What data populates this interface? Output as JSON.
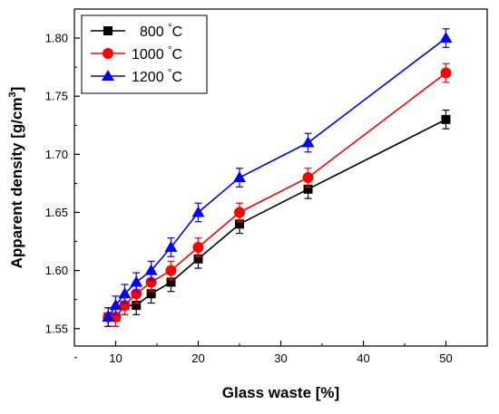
{
  "chart_data": {
    "type": "line",
    "xlabel": "Glass waste [%]",
    "ylabel": "Apparent density [g/cm³]",
    "ylabel_parts": {
      "main": "Apparent density [g/cm",
      "sup": "3",
      "end": "]"
    },
    "xlim": [
      5,
      55
    ],
    "ylim": [
      1.535,
      1.825
    ],
    "xticks": [
      10,
      20,
      30,
      40,
      50
    ],
    "yticks": [
      1.55,
      1.6,
      1.65,
      1.7,
      1.75,
      1.8
    ],
    "ytick_labels": [
      "1.55",
      "1.60",
      "1.65",
      "1.70",
      "1.75",
      "1.80"
    ],
    "legend_position": "top-left",
    "grid": false,
    "series": [
      {
        "name": "800 °C",
        "name_parts": {
          "value": "800",
          "unit": "°C"
        },
        "color": "#000000",
        "marker": "square",
        "x": [
          9.1,
          10,
          11.1,
          12.5,
          14.3,
          16.7,
          20,
          25,
          33.3,
          50
        ],
        "y": [
          1.56,
          1.56,
          1.57,
          1.57,
          1.58,
          1.59,
          1.61,
          1.64,
          1.67,
          1.73
        ],
        "error": 0.008
      },
      {
        "name": "1000 °C",
        "name_parts": {
          "value": "1000",
          "unit": "°C"
        },
        "color": "#ff0000",
        "marker": "circle",
        "x": [
          9.1,
          10,
          11.1,
          12.5,
          14.3,
          16.7,
          20,
          25,
          33.3,
          50
        ],
        "y": [
          1.56,
          1.56,
          1.57,
          1.58,
          1.59,
          1.6,
          1.62,
          1.65,
          1.68,
          1.77
        ],
        "error": 0.008
      },
      {
        "name": "1200 °C",
        "name_parts": {
          "value": "1200",
          "unit": "°C"
        },
        "color": "#0000ff",
        "marker": "triangle",
        "x": [
          9.1,
          10,
          11.1,
          12.5,
          14.3,
          16.7,
          20,
          25,
          33.3,
          50
        ],
        "y": [
          1.56,
          1.57,
          1.58,
          1.59,
          1.6,
          1.62,
          1.65,
          1.68,
          1.71,
          1.8
        ],
        "error": 0.008
      }
    ]
  }
}
